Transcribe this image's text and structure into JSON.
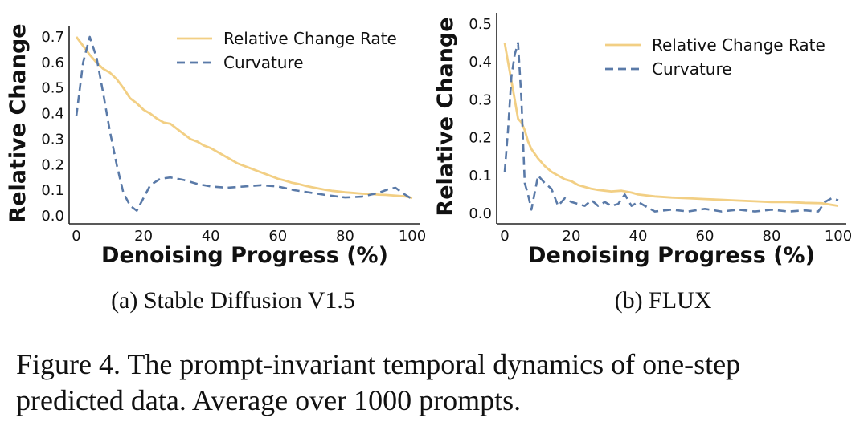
{
  "chart_data": [
    {
      "type": "line",
      "title": "",
      "xlabel": "Denoising Progress (%)",
      "ylabel": "Relative Change",
      "xlim": [
        0,
        100
      ],
      "ylim": [
        0,
        0.7
      ],
      "xticks": [
        "0",
        "20",
        "40",
        "60",
        "80",
        "100"
      ],
      "yticks": [
        "0.0",
        "0.1",
        "0.2",
        "0.3",
        "0.4",
        "0.5",
        "0.6",
        "0.7"
      ],
      "legend_position": "top-right",
      "subcaption": "(a) Stable Diffusion V1.5",
      "series": [
        {
          "name": "Relative Change Rate",
          "color": "#f2cf84",
          "style": "solid",
          "x": [
            0,
            2,
            4,
            6,
            8,
            10,
            12,
            14,
            16,
            18,
            20,
            22,
            24,
            26,
            28,
            30,
            32,
            34,
            36,
            38,
            40,
            42,
            44,
            46,
            48,
            50,
            52,
            54,
            56,
            58,
            60,
            62,
            64,
            66,
            68,
            70,
            72,
            74,
            76,
            78,
            80,
            82,
            84,
            86,
            88,
            90,
            92,
            94,
            96,
            98,
            100
          ],
          "y": [
            0.7,
            0.665,
            0.63,
            0.6,
            0.575,
            0.56,
            0.535,
            0.5,
            0.46,
            0.44,
            0.415,
            0.4,
            0.38,
            0.365,
            0.36,
            0.34,
            0.32,
            0.3,
            0.29,
            0.275,
            0.265,
            0.25,
            0.235,
            0.22,
            0.205,
            0.195,
            0.185,
            0.175,
            0.165,
            0.155,
            0.145,
            0.138,
            0.13,
            0.125,
            0.118,
            0.112,
            0.107,
            0.102,
            0.098,
            0.095,
            0.092,
            0.09,
            0.088,
            0.086,
            0.085,
            0.083,
            0.082,
            0.08,
            0.078,
            0.076,
            0.07
          ]
        },
        {
          "name": "Curvature",
          "color": "#5a7aa8",
          "style": "dashed",
          "x": [
            0,
            2,
            4,
            6,
            8,
            10,
            12,
            14,
            16,
            18,
            20,
            22,
            25,
            28,
            32,
            36,
            40,
            45,
            50,
            55,
            60,
            65,
            70,
            75,
            80,
            85,
            90,
            93,
            95,
            97,
            100
          ],
          "y": [
            0.39,
            0.6,
            0.7,
            0.62,
            0.48,
            0.33,
            0.2,
            0.09,
            0.04,
            0.02,
            0.07,
            0.12,
            0.145,
            0.15,
            0.14,
            0.125,
            0.115,
            0.11,
            0.115,
            0.12,
            0.115,
            0.1,
            0.09,
            0.08,
            0.072,
            0.075,
            0.09,
            0.105,
            0.11,
            0.09,
            0.065
          ]
        }
      ]
    },
    {
      "type": "line",
      "title": "",
      "xlabel": "Denoising Progress (%)",
      "ylabel": "Relative Change",
      "xlim": [
        0,
        100
      ],
      "ylim": [
        0,
        0.5
      ],
      "xticks": [
        "0",
        "20",
        "40",
        "60",
        "80",
        "100"
      ],
      "yticks": [
        "0.0",
        "0.1",
        "0.2",
        "0.3",
        "0.4",
        "0.5"
      ],
      "legend_position": "top-right",
      "subcaption": "(b) FLUX",
      "series": [
        {
          "name": "Relative Change Rate",
          "color": "#f2cf84",
          "style": "solid",
          "x": [
            0,
            1,
            2,
            3,
            4,
            5,
            6,
            7,
            8,
            10,
            12,
            14,
            16,
            18,
            20,
            22,
            24,
            26,
            28,
            30,
            32,
            35,
            38,
            40,
            45,
            50,
            55,
            60,
            65,
            70,
            75,
            80,
            85,
            90,
            95,
            100
          ],
          "y": [
            0.45,
            0.4,
            0.35,
            0.3,
            0.25,
            0.24,
            0.22,
            0.19,
            0.17,
            0.145,
            0.125,
            0.11,
            0.1,
            0.09,
            0.085,
            0.075,
            0.07,
            0.065,
            0.062,
            0.06,
            0.058,
            0.06,
            0.055,
            0.05,
            0.045,
            0.042,
            0.04,
            0.038,
            0.036,
            0.034,
            0.032,
            0.03,
            0.03,
            0.028,
            0.027,
            0.02
          ]
        },
        {
          "name": "Curvature",
          "color": "#5a7aa8",
          "style": "dashed",
          "x": [
            0,
            1,
            2,
            3,
            4,
            5,
            6,
            7,
            8,
            10,
            12,
            14,
            16,
            18,
            20,
            22,
            24,
            26,
            28,
            30,
            32,
            34,
            36,
            38,
            40,
            45,
            50,
            55,
            60,
            65,
            70,
            75,
            80,
            85,
            90,
            94,
            96,
            98,
            100
          ],
          "y": [
            0.11,
            0.22,
            0.36,
            0.42,
            0.45,
            0.3,
            0.08,
            0.05,
            0.01,
            0.1,
            0.08,
            0.065,
            0.02,
            0.04,
            0.03,
            0.025,
            0.02,
            0.035,
            0.02,
            0.03,
            0.02,
            0.025,
            0.05,
            0.02,
            0.03,
            0.005,
            0.01,
            0.005,
            0.012,
            0.005,
            0.01,
            0.005,
            0.01,
            0.005,
            0.008,
            0.005,
            0.03,
            0.04,
            0.035
          ]
        }
      ]
    }
  ],
  "caption": {
    "line1": "Figure 4.  The prompt-invariant temporal dynamics of one-step",
    "line2": "predicted data. Average over 1000 prompts."
  }
}
